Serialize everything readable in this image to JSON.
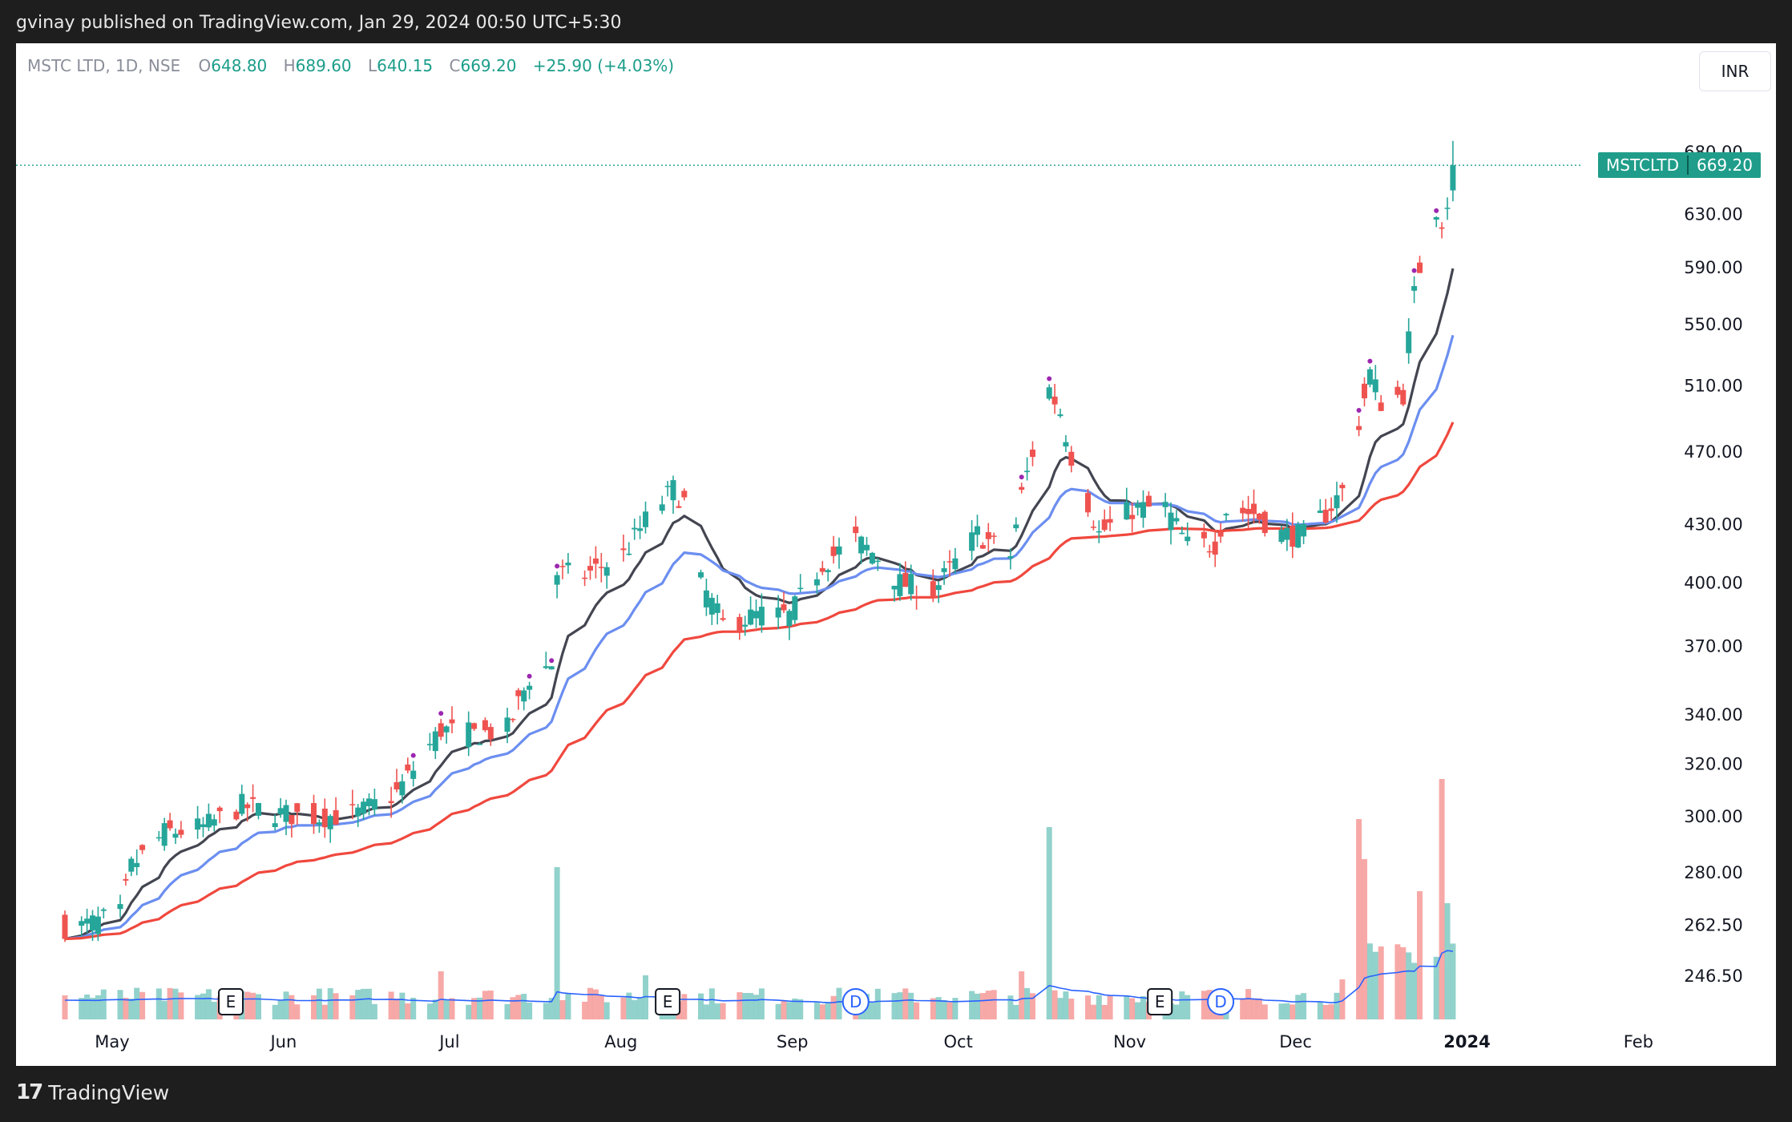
{
  "header": {
    "published_by": "gvinay published on TradingView.com, Jan 29, 2024 00:50 UTC+5:30"
  },
  "legend": {
    "symbol": "MSTC LTD, 1D, NSE",
    "o_label": "O",
    "o": "648.80",
    "h_label": "H",
    "h": "689.60",
    "l_label": "L",
    "l": "640.15",
    "c_label": "C",
    "c": "669.20",
    "change": "+25.90 (+4.03%)"
  },
  "currency": "INR",
  "last_price": {
    "ticker": "MSTCLTD",
    "value": "669.20"
  },
  "footer": {
    "brand": "TradingView"
  },
  "colors": {
    "up": "#26a69a",
    "down": "#ef5350",
    "ema_fast": "#434651",
    "ema_mid": "#6b8ef0",
    "ema_slow": "#f0483e",
    "volume_ma": "#2962ff"
  },
  "chart_data": {
    "type": "candlestick",
    "y_scale": "log",
    "y_ticks": [
      "680.00",
      "630.00",
      "590.00",
      "550.00",
      "510.00",
      "470.00",
      "430.00",
      "400.00",
      "370.00",
      "340.00",
      "320.00",
      "300.00",
      "280.00",
      "262.50",
      "246.50"
    ],
    "x_ticks": [
      "May",
      "Jun",
      "Jul",
      "Aug",
      "Sep",
      "Oct",
      "Nov",
      "Dec",
      "2024",
      "Feb"
    ],
    "events": [
      {
        "label": "E",
        "month": "May"
      },
      {
        "label": "E",
        "month": "Aug"
      },
      {
        "label": "D",
        "month": "Sep"
      },
      {
        "label": "E",
        "month": "Nov"
      },
      {
        "label": "D",
        "month": "Nov"
      }
    ],
    "series": [
      {
        "name": "",
        "close_anchors": [
          [
            "Apr 24",
            262
          ],
          [
            "May 1",
            266
          ],
          [
            "May 3",
            282
          ],
          [
            "May 9",
            294
          ],
          [
            "May 16",
            296
          ],
          [
            "May 23",
            304
          ],
          [
            "May 30",
            301
          ],
          [
            "Jun 6",
            300
          ],
          [
            "Jun 13",
            301
          ],
          [
            "Jun 20",
            309
          ],
          [
            "Jun 23",
            318
          ],
          [
            "Jun 28",
            334
          ],
          [
            "Jul 4",
            332
          ],
          [
            "Jul 10",
            334
          ],
          [
            "Jul 14",
            356
          ],
          [
            "Jul 18",
            362
          ],
          [
            "Jul 19",
            405
          ],
          [
            "Jul 24",
            404
          ],
          [
            "Jul 31",
            414
          ],
          [
            "Aug 4",
            432
          ],
          [
            "Aug 9",
            449
          ],
          [
            "Aug 11",
            442
          ],
          [
            "Aug 14",
            400
          ],
          [
            "Aug 18",
            380
          ],
          [
            "Aug 25",
            385
          ],
          [
            "Aug 30",
            384
          ],
          [
            "Sep 5",
            410
          ],
          [
            "Sep 11",
            422
          ],
          [
            "Sep 15",
            413
          ],
          [
            "Sep 19",
            400
          ],
          [
            "Sep 25",
            396
          ],
          [
            "Sep 29",
            410
          ],
          [
            "Oct 3",
            425
          ],
          [
            "Oct 9",
            414
          ],
          [
            "Oct 11",
            446
          ],
          [
            "Oct 16",
            508
          ],
          [
            "Oct 18",
            494
          ],
          [
            "Oct 20",
            468
          ],
          [
            "Oct 25",
            425
          ],
          [
            "Oct 31",
            438
          ],
          [
            "Nov 6",
            439
          ],
          [
            "Nov 10",
            419
          ],
          [
            "Nov 15",
            420
          ],
          [
            "Nov 17",
            438
          ],
          [
            "Nov 22",
            436
          ],
          [
            "Nov 27",
            425
          ],
          [
            "Dec 1",
            424
          ],
          [
            "Dec 5",
            436
          ],
          [
            "Dec 8",
            448
          ],
          [
            "Dec 11",
            488
          ],
          [
            "Dec 13",
            518
          ],
          [
            "Dec 15",
            500
          ],
          [
            "Dec 19",
            505
          ],
          [
            "Dec 20",
            540
          ],
          [
            "Dec 21",
            570
          ],
          [
            "Dec 22",
            590
          ],
          [
            "Dec 25",
            635
          ],
          [
            "Dec 26",
            626
          ],
          [
            "Dec 27",
            640
          ],
          [
            "Dec 28",
            669.2
          ]
        ]
      }
    ]
  }
}
